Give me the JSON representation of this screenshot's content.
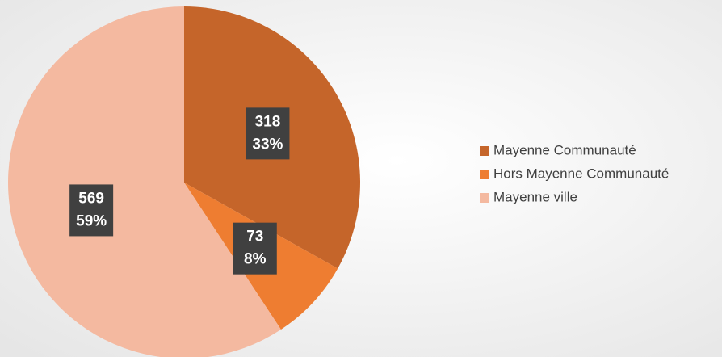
{
  "chart_data": {
    "type": "pie",
    "categories": [
      "Mayenne Communauté",
      "Hors Mayenne Communauté",
      "Mayenne ville"
    ],
    "values": [
      318,
      73,
      569
    ],
    "percents": [
      33,
      8,
      59
    ],
    "percent_labels": [
      "33%",
      "8%",
      "59%"
    ],
    "colors": [
      "#c5652a",
      "#ee7d31",
      "#f4b9a0"
    ],
    "legend": "right"
  }
}
